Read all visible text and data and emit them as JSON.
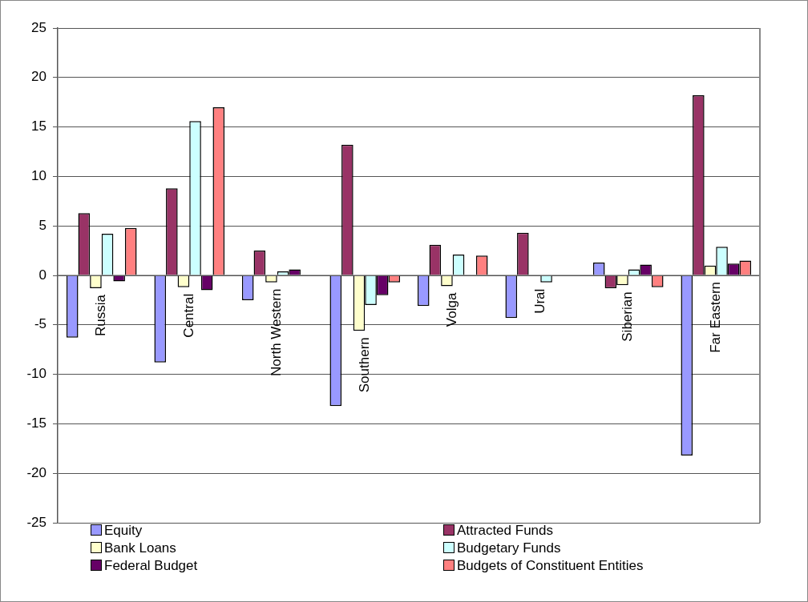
{
  "chart_data": {
    "type": "bar",
    "categories": [
      "Russia",
      "Central",
      "North Western",
      "Southern",
      "Volga",
      "Ural",
      "Siberian",
      "Far Eastern"
    ],
    "series": [
      {
        "name": "Equity",
        "color": "#9999ff",
        "values": [
          -6.3,
          -8.8,
          -2.5,
          -13.2,
          -3.1,
          -4.3,
          1.3,
          -18.2
        ]
      },
      {
        "name": "Attracted Funds",
        "color": "#993366",
        "values": [
          6.3,
          8.8,
          2.5,
          13.2,
          3.1,
          4.3,
          -1.3,
          18.2
        ]
      },
      {
        "name": "Bank Loans",
        "color": "#ffffcc",
        "values": [
          -1.3,
          -1.2,
          -0.7,
          -5.6,
          -1.1,
          null,
          -1.0,
          1.0
        ]
      },
      {
        "name": "Budgetary Funds",
        "color": "#ccffff",
        "values": [
          4.2,
          15.6,
          0.4,
          -3.0,
          2.1,
          -0.7,
          0.6,
          2.9
        ]
      },
      {
        "name": "Federal Budget",
        "color": "#660066",
        "values": [
          -0.6,
          -1.5,
          0.6,
          -2.0,
          null,
          null,
          1.1,
          1.2
        ]
      },
      {
        "name": "Budgets of Constituent Entities",
        "color": "#ff8080",
        "values": [
          4.8,
          17.0,
          0,
          -0.7,
          2.0,
          null,
          -1.2,
          1.5
        ]
      }
    ],
    "ylim": [
      -25,
      25
    ],
    "yticks": [
      -25,
      -20,
      -15,
      -10,
      -5,
      0,
      5,
      10,
      15,
      20,
      25
    ],
    "grid": "y",
    "legend": "bottom"
  }
}
